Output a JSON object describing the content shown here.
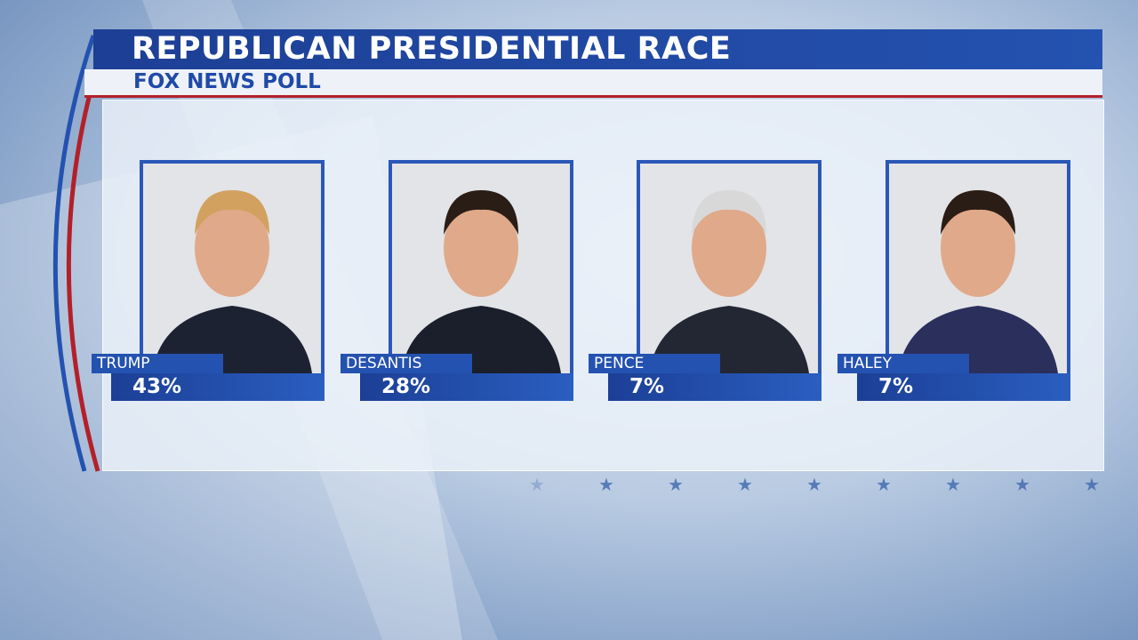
{
  "header": {
    "title": "REPUBLICAN PRESIDENTIAL RACE",
    "subtitle": "FOX NEWS POLL"
  },
  "candidates": [
    {
      "name": "TRUMP",
      "result": "43%"
    },
    {
      "name": "DESANTIS",
      "result": "28%"
    },
    {
      "name": "PENCE",
      "result": "7%"
    },
    {
      "name": "HALEY",
      "result": "7%"
    }
  ]
}
